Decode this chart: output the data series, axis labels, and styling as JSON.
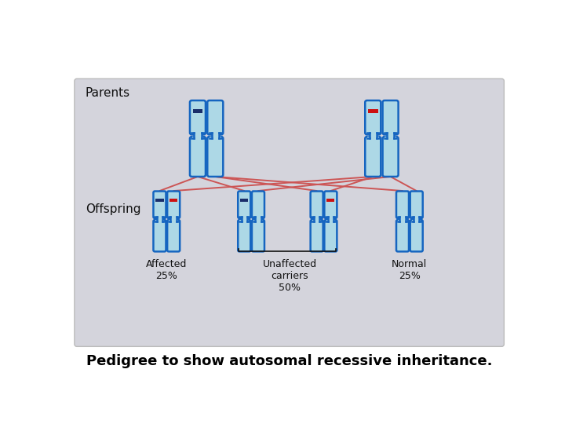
{
  "panel_bg": "#d4d4dc",
  "chr_fill": "#add8e6",
  "chr_edge": "#1565c0",
  "dark_band": "#1a2e6b",
  "red_band": "#cc1111",
  "line_color": "#cc5555",
  "text_color": "#111111",
  "title": "Pedigree to show autosomal recessive inheritance.",
  "title_fontsize": 13,
  "parents_label": "Parents",
  "offspring_label": "Offspring",
  "label1": "Affected\n25%",
  "label2": "Unaffected\ncarriers\n50%",
  "label3": "Normal\n25%"
}
